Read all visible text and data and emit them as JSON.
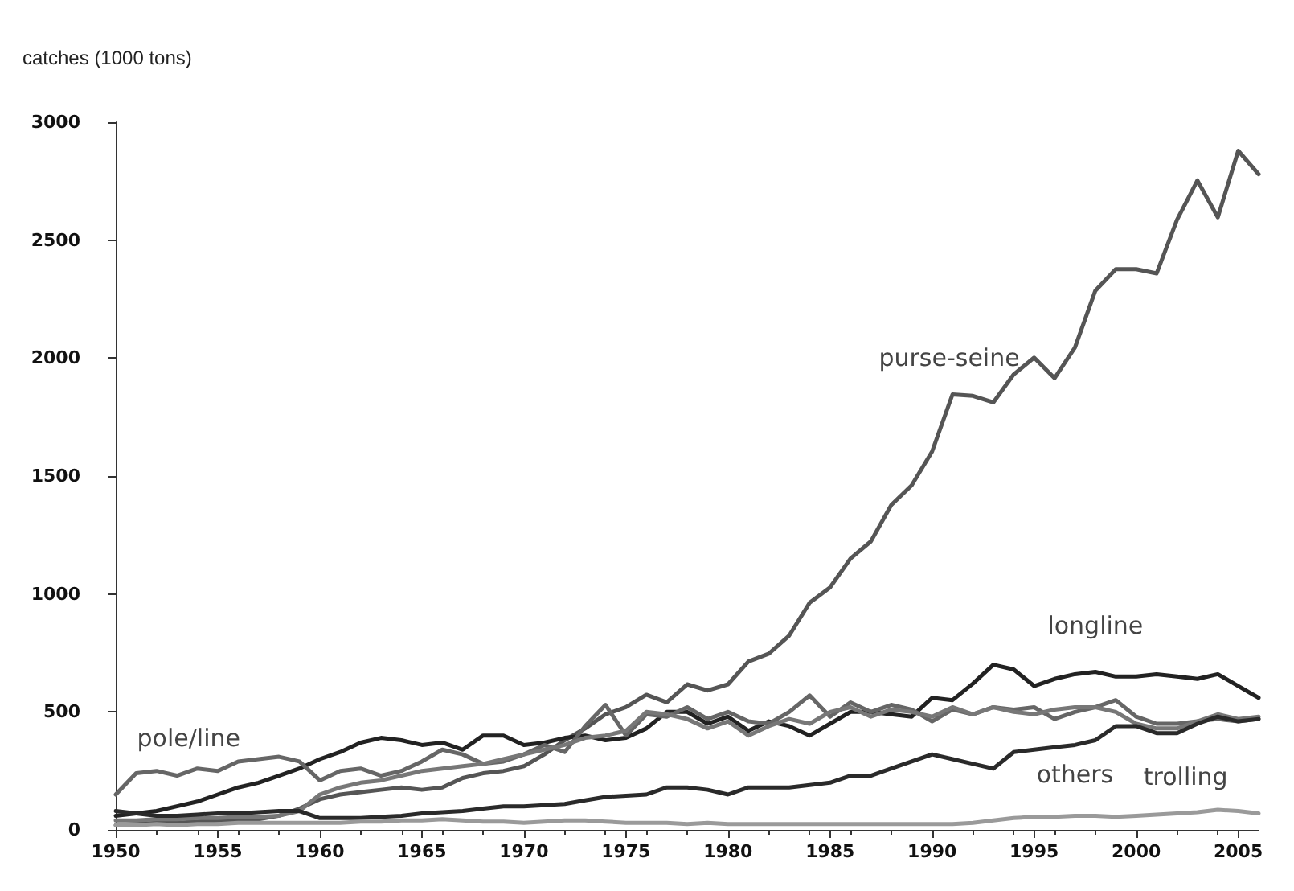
{
  "chart_data": {
    "type": "line",
    "ylabel": "catches (1000 tons)",
    "x": [
      1950,
      1951,
      1952,
      1953,
      1954,
      1955,
      1956,
      1957,
      1958,
      1959,
      1960,
      1961,
      1962,
      1963,
      1964,
      1965,
      1966,
      1967,
      1968,
      1969,
      1970,
      1971,
      1972,
      1973,
      1974,
      1975,
      1976,
      1977,
      1978,
      1979,
      1980,
      1981,
      1982,
      1983,
      1984,
      1985,
      1986,
      1987,
      1988,
      1989,
      1990,
      1991,
      1992,
      1993,
      1994,
      1995,
      1996,
      1997,
      1998,
      1999,
      2000,
      2001,
      2002,
      2003,
      2004,
      2005,
      2006
    ],
    "xlim": [
      1950,
      2006
    ],
    "xticks": [
      1950,
      1955,
      1960,
      1965,
      1970,
      1975,
      1980,
      1985,
      1990,
      1995,
      2000,
      2005
    ],
    "ylim": [
      0,
      3000
    ],
    "yticks": [
      0,
      500,
      1000,
      1500,
      2000,
      2500,
      3000
    ],
    "grid": false,
    "marker": "none",
    "line_style": "solid",
    "series": [
      {
        "name": "purse-seine",
        "color": "#555555",
        "values": [
          20,
          25,
          30,
          30,
          35,
          40,
          40,
          45,
          60,
          90,
          130,
          150,
          160,
          170,
          180,
          170,
          180,
          220,
          240,
          250,
          270,
          320,
          380,
          430,
          490,
          520,
          573,
          541,
          617,
          591,
          617,
          714,
          747,
          824,
          963,
          1028,
          1150,
          1223,
          1377,
          1461,
          1604,
          1846,
          1840,
          1812,
          1931,
          2002,
          1915,
          2045,
          2286,
          2377,
          2377,
          2359,
          2586,
          2753,
          2597,
          2879,
          2780
        ]
      },
      {
        "name": "longline",
        "color": "#222222",
        "values": [
          60,
          70,
          80,
          100,
          120,
          150,
          180,
          200,
          230,
          260,
          300,
          330,
          370,
          390,
          380,
          360,
          370,
          340,
          400,
          400,
          360,
          370,
          390,
          400,
          380,
          390,
          430,
          500,
          500,
          450,
          480,
          420,
          460,
          440,
          400,
          450,
          500,
          500,
          490,
          480,
          560,
          550,
          620,
          700,
          680,
          610,
          640,
          660,
          670,
          650,
          650,
          660,
          650,
          640,
          660,
          610,
          560
        ]
      },
      {
        "name": "pole/line",
        "color": "#666666",
        "values": [
          150,
          240,
          250,
          230,
          260,
          250,
          290,
          300,
          310,
          290,
          210,
          250,
          260,
          230,
          250,
          290,
          340,
          320,
          280,
          290,
          320,
          360,
          330,
          440,
          530,
          400,
          490,
          480,
          520,
          470,
          500,
          460,
          450,
          500,
          570,
          480,
          540,
          500,
          530,
          510,
          460,
          510,
          490,
          520,
          510,
          520,
          470,
          500,
          520,
          550,
          480,
          450,
          450,
          460,
          470,
          460,
          470
        ]
      },
      {
        "color": "#777777",
        "values": [
          40,
          40,
          45,
          45,
          50,
          50,
          55,
          55,
          60,
          80,
          150,
          180,
          200,
          210,
          230,
          250,
          260,
          270,
          280,
          300,
          320,
          340,
          360,
          390,
          400,
          420,
          500,
          490,
          470,
          430,
          460,
          400,
          440,
          470,
          450,
          500,
          520,
          480,
          510,
          500,
          480,
          520,
          490,
          520,
          500,
          490,
          510,
          520,
          520,
          500,
          450,
          430,
          430,
          460,
          490,
          470,
          480
        ]
      },
      {
        "name": "others",
        "color": "#2a2a2a",
        "values": [
          80,
          70,
          60,
          60,
          65,
          70,
          70,
          75,
          80,
          80,
          50,
          50,
          50,
          55,
          60,
          70,
          75,
          80,
          90,
          100,
          100,
          105,
          110,
          125,
          140,
          145,
          150,
          180,
          180,
          170,
          150,
          180,
          180,
          180,
          190,
          200,
          230,
          230,
          260,
          290,
          320,
          300,
          280,
          260,
          330,
          340,
          350,
          360,
          380,
          440,
          440,
          410,
          410,
          450,
          480,
          460,
          470
        ]
      },
      {
        "name": "trolling",
        "color": "#9a9a9a",
        "values": [
          20,
          20,
          25,
          20,
          25,
          25,
          30,
          30,
          30,
          30,
          30,
          30,
          35,
          35,
          40,
          40,
          45,
          40,
          35,
          35,
          30,
          35,
          40,
          40,
          35,
          30,
          30,
          30,
          25,
          30,
          25,
          25,
          25,
          25,
          25,
          25,
          25,
          25,
          25,
          25,
          25,
          25,
          30,
          40,
          50,
          55,
          55,
          60,
          60,
          55,
          60,
          65,
          70,
          75,
          85,
          80,
          70
        ]
      }
    ]
  }
}
